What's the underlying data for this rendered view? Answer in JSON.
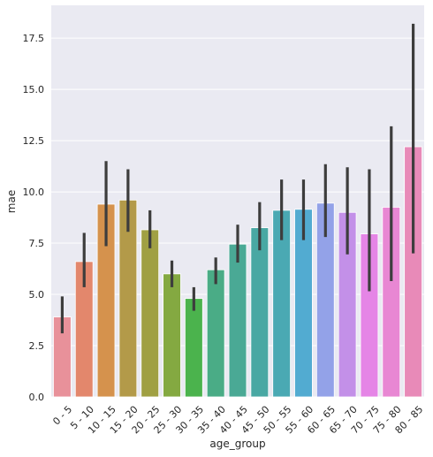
{
  "chart_data": {
    "type": "bar",
    "xlabel": "age_group",
    "ylabel": "mae",
    "ylim": [
      0,
      19.1
    ],
    "yticks": [
      0.0,
      2.5,
      5.0,
      7.5,
      10.0,
      12.5,
      15.0,
      17.5
    ],
    "ytick_labels": [
      "0.0",
      "2.5",
      "5.0",
      "7.5",
      "10.0",
      "12.5",
      "15.0",
      "17.5"
    ],
    "grid": true,
    "background": "#eaeaf2",
    "errorbar_color": "#3d3d3d",
    "categories": [
      "0 - 5",
      "5 - 10",
      "10 - 15",
      "15 - 20",
      "20 - 25",
      "25 - 30",
      "30 - 35",
      "35 - 40",
      "40 - 45",
      "45 - 50",
      "50 - 55",
      "55 - 60",
      "60 - 65",
      "65 - 70",
      "70 - 75",
      "75 - 80",
      "80 - 85"
    ],
    "values": [
      3.9,
      6.6,
      9.4,
      9.6,
      8.15,
      6.0,
      4.8,
      6.2,
      7.45,
      8.25,
      9.1,
      9.15,
      9.45,
      9.0,
      7.95,
      9.25,
      12.2
    ],
    "err_low": [
      3.1,
      5.35,
      7.35,
      8.05,
      7.25,
      5.35,
      4.2,
      5.5,
      6.55,
      7.15,
      7.65,
      7.65,
      7.8,
      6.95,
      5.15,
      5.65,
      7.0
    ],
    "err_high": [
      4.9,
      8.0,
      11.5,
      11.1,
      9.1,
      6.65,
      5.35,
      6.8,
      8.4,
      9.5,
      10.6,
      10.6,
      11.35,
      11.2,
      11.1,
      13.2,
      18.2
    ],
    "colors": [
      "#e8919a",
      "#e3876c",
      "#d5924d",
      "#b39a49",
      "#a0a043",
      "#84a941",
      "#4bb34d",
      "#4aac86",
      "#4aa995",
      "#49a8a3",
      "#4aa9b3",
      "#52abd1",
      "#93a2e8",
      "#c390e8",
      "#e585e6",
      "#e887d3",
      "#e88ab8"
    ]
  }
}
